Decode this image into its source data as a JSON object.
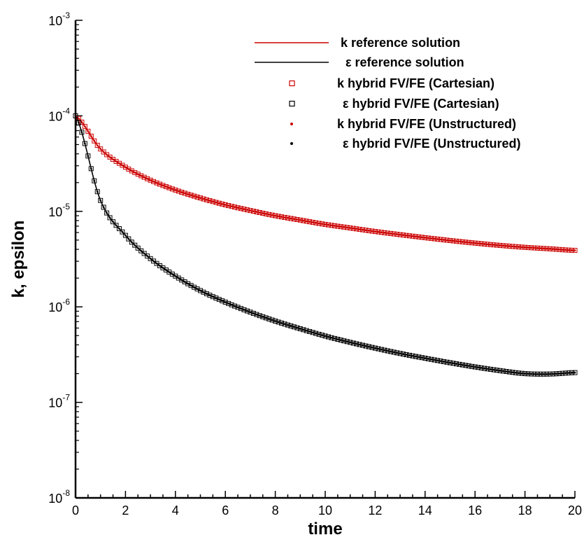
{
  "chart_data": {
    "type": "line",
    "title": "",
    "xlabel": "time",
    "ylabel": "k, epsilon",
    "xlim": [
      0,
      20
    ],
    "ylim": [
      1e-08,
      0.001
    ],
    "y_scale": "log",
    "grid": false,
    "legend_position": "top-right",
    "x_ticks": [
      "0",
      "2",
      "4",
      "6",
      "8",
      "10",
      "12",
      "14",
      "16",
      "18",
      "20"
    ],
    "y_ticks": [
      {
        "base": "10",
        "exp": "-8"
      },
      {
        "base": "10",
        "exp": "-7"
      },
      {
        "base": "10",
        "exp": "-6"
      },
      {
        "base": "10",
        "exp": "-5"
      },
      {
        "base": "10",
        "exp": "-4"
      },
      {
        "base": "10",
        "exp": "-3"
      }
    ],
    "colors": {
      "k": "#cc0000",
      "epsilon": "#000000"
    },
    "x": [
      0,
      1,
      2,
      3,
      4,
      5,
      6,
      7,
      8,
      9,
      10,
      11,
      12,
      13,
      14,
      15,
      16,
      17,
      18,
      19,
      20
    ],
    "series": [
      {
        "name": "k reference solution",
        "variable": "k",
        "style": "line",
        "values": [
          0.0001,
          4.5e-05,
          2.9e-05,
          2.12e-05,
          1.67e-05,
          1.38e-05,
          1.17e-05,
          1.02e-05,
          9e-06,
          8.1e-06,
          7.3e-06,
          6.7e-06,
          6.15e-06,
          5.7e-06,
          5.3e-06,
          4.95e-06,
          4.65e-06,
          4.4e-06,
          4.2e-06,
          4.05e-06,
          3.9e-06
        ]
      },
      {
        "name": "ε  reference solution",
        "variable": "epsilon",
        "style": "line",
        "values": [
          0.0001,
          1.3e-05,
          5.6e-06,
          3.2e-06,
          2.1e-06,
          1.48e-06,
          1.12e-06,
          8.8e-07,
          7.1e-07,
          5.9e-07,
          4.95e-07,
          4.25e-07,
          3.7e-07,
          3.25e-07,
          2.9e-07,
          2.6e-07,
          2.35e-07,
          2.15e-07,
          2e-07,
          1.98e-07,
          2.05e-07
        ]
      },
      {
        "name": "k hybrid FV/FE (Cartesian)",
        "variable": "k",
        "style": "open-square",
        "values": [
          0.0001,
          4.5e-05,
          2.9e-05,
          2.12e-05,
          1.67e-05,
          1.38e-05,
          1.17e-05,
          1.02e-05,
          9e-06,
          8.1e-06,
          7.3e-06,
          6.7e-06,
          6.15e-06,
          5.7e-06,
          5.3e-06,
          4.95e-06,
          4.65e-06,
          4.4e-06,
          4.2e-06,
          4.05e-06,
          3.9e-06
        ]
      },
      {
        "name": "ε  hybrid FV/FE (Cartesian)",
        "variable": "epsilon",
        "style": "open-square",
        "values": [
          0.0001,
          1.3e-05,
          5.6e-06,
          3.2e-06,
          2.1e-06,
          1.48e-06,
          1.12e-06,
          8.8e-07,
          7.1e-07,
          5.9e-07,
          4.95e-07,
          4.25e-07,
          3.7e-07,
          3.25e-07,
          2.9e-07,
          2.6e-07,
          2.35e-07,
          2.15e-07,
          2e-07,
          1.98e-07,
          2.05e-07
        ]
      },
      {
        "name": "k hybrid FV/FE (Unstructured)",
        "variable": "k",
        "style": "dot",
        "values": [
          0.0001,
          4.5e-05,
          2.9e-05,
          2.12e-05,
          1.67e-05,
          1.38e-05,
          1.17e-05,
          1.02e-05,
          9e-06,
          8.1e-06,
          7.3e-06,
          6.7e-06,
          6.15e-06,
          5.7e-06,
          5.3e-06,
          4.95e-06,
          4.65e-06,
          4.4e-06,
          4.2e-06,
          4.05e-06,
          3.9e-06
        ]
      },
      {
        "name": "ε  hybrid FV/FE (Unstructured)",
        "variable": "epsilon",
        "style": "dot",
        "values": [
          0.0001,
          1.3e-05,
          5.6e-06,
          3.2e-06,
          2.1e-06,
          1.48e-06,
          1.12e-06,
          8.8e-07,
          7.1e-07,
          5.9e-07,
          4.95e-07,
          4.25e-07,
          3.7e-07,
          3.25e-07,
          2.9e-07,
          2.6e-07,
          2.35e-07,
          2.15e-07,
          2e-07,
          1.98e-07,
          2.05e-07
        ]
      }
    ]
  }
}
